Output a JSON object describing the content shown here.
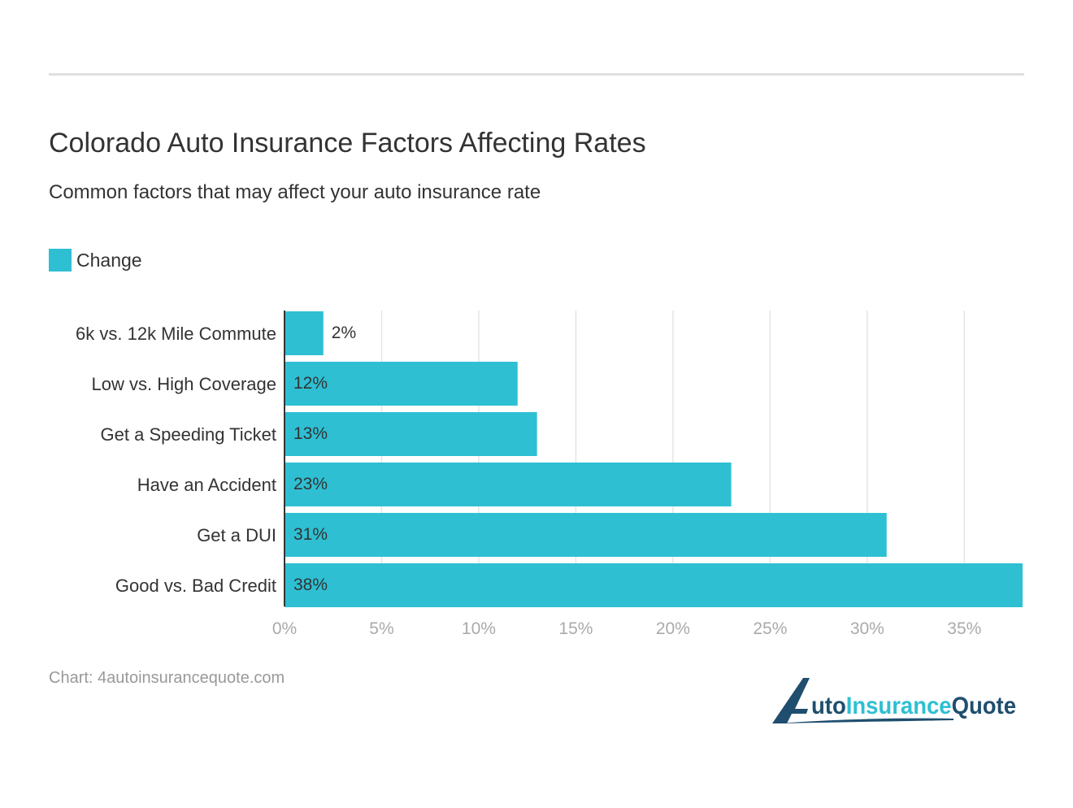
{
  "title": "Colorado Auto Insurance Factors Affecting Rates",
  "subtitle": "Common factors that may affect your auto insurance rate",
  "source": "Chart: 4autoinsurancequote.com",
  "logo_text": "4AutoInsuranceQuote",
  "colors": {
    "bar": "#2ebfd3",
    "logo_dark": "#1f4e6e",
    "logo_light": "#2ebfd3"
  },
  "chart_data": {
    "type": "bar",
    "orientation": "horizontal",
    "categories": [
      "6k vs. 12k Mile Commute",
      "Low vs. High Coverage",
      "Get a Speeding Ticket",
      "Have an Accident",
      "Get a DUI",
      "Good vs. Bad Credit"
    ],
    "series": [
      {
        "name": "Change",
        "values": [
          2,
          12,
          13,
          23,
          31,
          38
        ]
      }
    ],
    "data_labels": [
      "2%",
      "12%",
      "13%",
      "23%",
      "31%",
      "38%"
    ],
    "xlim": [
      0,
      38
    ],
    "xticks": [
      0,
      5,
      10,
      15,
      20,
      25,
      30,
      35
    ],
    "xtick_labels": [
      "0%",
      "5%",
      "10%",
      "15%",
      "20%",
      "25%",
      "30%",
      "35%"
    ],
    "grid": true,
    "legend": "top-left"
  }
}
